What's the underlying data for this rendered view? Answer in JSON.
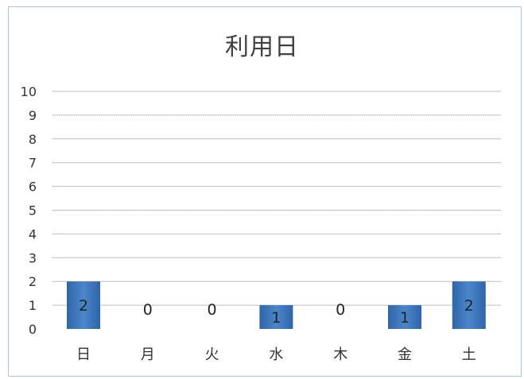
{
  "chart_data": {
    "type": "bar",
    "title": "利用日",
    "categories": [
      "日",
      "月",
      "火",
      "水",
      "木",
      "金",
      "土"
    ],
    "values": [
      2,
      0,
      0,
      1,
      0,
      1,
      2
    ],
    "ylim": [
      0,
      10
    ],
    "yticks": [
      "0",
      "1",
      "2",
      "3",
      "4",
      "5",
      "6",
      "7",
      "8",
      "9",
      "10"
    ],
    "xlabel": "",
    "ylabel": "",
    "grid": true,
    "bar_color": "#3d78c0",
    "data_labels": true
  }
}
